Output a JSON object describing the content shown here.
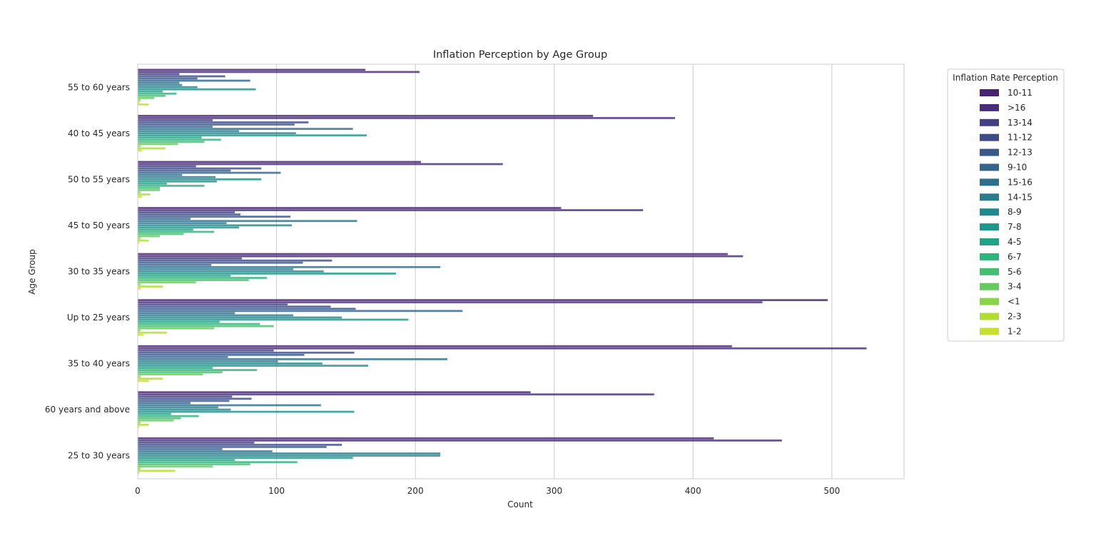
{
  "chart_data": {
    "type": "bar",
    "orientation": "horizontal",
    "title": "Inflation Perception by Age Group",
    "xlabel": "Count",
    "ylabel": "Age Group",
    "xlim": [
      0,
      552
    ],
    "xticks": [
      0,
      100,
      200,
      300,
      400,
      500
    ],
    "grid": "vertical",
    "legend_title": "Inflation Rate Perception",
    "legend_position": "outside-right",
    "categories": [
      "55 to 60 years",
      "40 to 45 years",
      "50 to 55 years",
      "45 to 50 years",
      "30 to 35 years",
      "Up to 25 years",
      "35 to 40 years",
      "60 years and above",
      "25 to 30 years"
    ],
    "series": [
      {
        "name": "10-11",
        "color": "#482374",
        "values": [
          164,
          328,
          204,
          305,
          425,
          497,
          428,
          283,
          415
        ]
      },
      {
        "name": ">16",
        "color": "#472d7b",
        "values": [
          203,
          387,
          263,
          364,
          436,
          450,
          525,
          372,
          464
        ]
      },
      {
        "name": "13-14",
        "color": "#433e85",
        "values": [
          30,
          54,
          42,
          70,
          75,
          108,
          98,
          68,
          84
        ]
      },
      {
        "name": "11-12",
        "color": "#3e4c8a",
        "values": [
          63,
          123,
          89,
          74,
          140,
          139,
          156,
          82,
          147
        ]
      },
      {
        "name": "12-13",
        "color": "#38588c",
        "values": [
          43,
          113,
          67,
          110,
          119,
          157,
          120,
          66,
          136
        ]
      },
      {
        "name": "9-10",
        "color": "#32648e",
        "values": [
          81,
          54,
          103,
          38,
          53,
          234,
          65,
          38,
          61
        ]
      },
      {
        "name": "15-16",
        "color": "#2d708e",
        "values": [
          30,
          155,
          32,
          158,
          218,
          70,
          223,
          132,
          97
        ]
      },
      {
        "name": "14-15",
        "color": "#287c8e",
        "values": [
          32,
          73,
          56,
          64,
          112,
          112,
          101,
          58,
          218
        ]
      },
      {
        "name": "8-9",
        "color": "#23888e",
        "values": [
          43,
          114,
          89,
          111,
          134,
          147,
          133,
          67,
          218
        ]
      },
      {
        "name": "7-8",
        "color": "#1f958b",
        "values": [
          85,
          165,
          57,
          73,
          186,
          195,
          166,
          156,
          155
        ]
      },
      {
        "name": "4-5",
        "color": "#20a386",
        "values": [
          18,
          46,
          21,
          40,
          67,
          59,
          54,
          24,
          70
        ]
      },
      {
        "name": "6-7",
        "color": "#2eb37c",
        "values": [
          28,
          60,
          48,
          55,
          93,
          88,
          86,
          44,
          115
        ]
      },
      {
        "name": "5-6",
        "color": "#44bf70",
        "values": [
          20,
          48,
          16,
          33,
          80,
          98,
          61,
          31,
          81
        ]
      },
      {
        "name": "3-4",
        "color": "#65cb5e",
        "values": [
          12,
          29,
          16,
          16,
          42,
          55,
          47,
          26,
          54
        ]
      },
      {
        "name": "<1",
        "color": "#89d548",
        "values": [
          2,
          2,
          2,
          2,
          2,
          2,
          2,
          2,
          2
        ]
      },
      {
        "name": "2-3",
        "color": "#b0dd2f",
        "values": [
          1,
          20,
          9,
          8,
          18,
          21,
          18,
          8,
          27
        ]
      },
      {
        "name": "1-2",
        "color": "#c8df30",
        "values": [
          8,
          3,
          3,
          1,
          2,
          4,
          8,
          1,
          1
        ]
      }
    ]
  }
}
